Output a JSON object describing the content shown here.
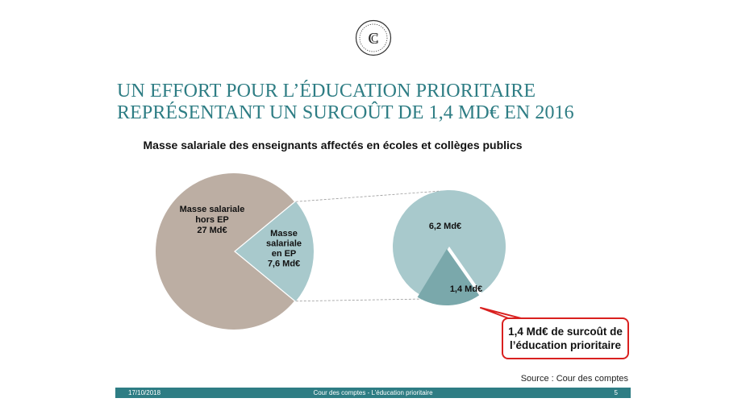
{
  "slide": {
    "title_line1": "UN EFFORT POUR L’ÉDUCATION PRIORITAIRE",
    "title_line2": "REPRÉSENTANT UN SURCOÛT DE 1,4 MD€ EN 2016",
    "subtitle": "Masse salariale des enseignants affectés en écoles et collèges publics",
    "logo_icon": "cour-des-comptes-logo",
    "source": "Source : Cour des comptes",
    "callout": "1,4 Md€ de surcoût de\nl’éducation prioritaire"
  },
  "footer": {
    "date": "17/10/2018",
    "center": "Cour des comptes - L’éducation prioritaire",
    "page": "5"
  },
  "colors": {
    "teal": "#2e7d84",
    "pie_main": "#bcaea3",
    "pie_ep": "#a8c9cc",
    "pie_surcout": "#7aa8ab",
    "callout_border": "#d9201f"
  },
  "chart_data": [
    {
      "type": "pie",
      "title": "",
      "slices": [
        {
          "label": "Masse salariale hors EP 27 Md€",
          "value": 27
        },
        {
          "label": "Masse salariale en EP 7,6 Md€",
          "value": 7.6
        }
      ],
      "label_lines": {
        "hors_ep": [
          "Masse salariale",
          "hors EP",
          "27 Md€"
        ],
        "en_ep": [
          "Masse",
          "salariale",
          "en EP",
          "7,6 Md€"
        ]
      }
    },
    {
      "type": "pie",
      "title": "",
      "slices": [
        {
          "label": "6,2 Md€",
          "value": 6.2
        },
        {
          "label": "1,4 Md€",
          "value": 1.4
        }
      ]
    }
  ]
}
